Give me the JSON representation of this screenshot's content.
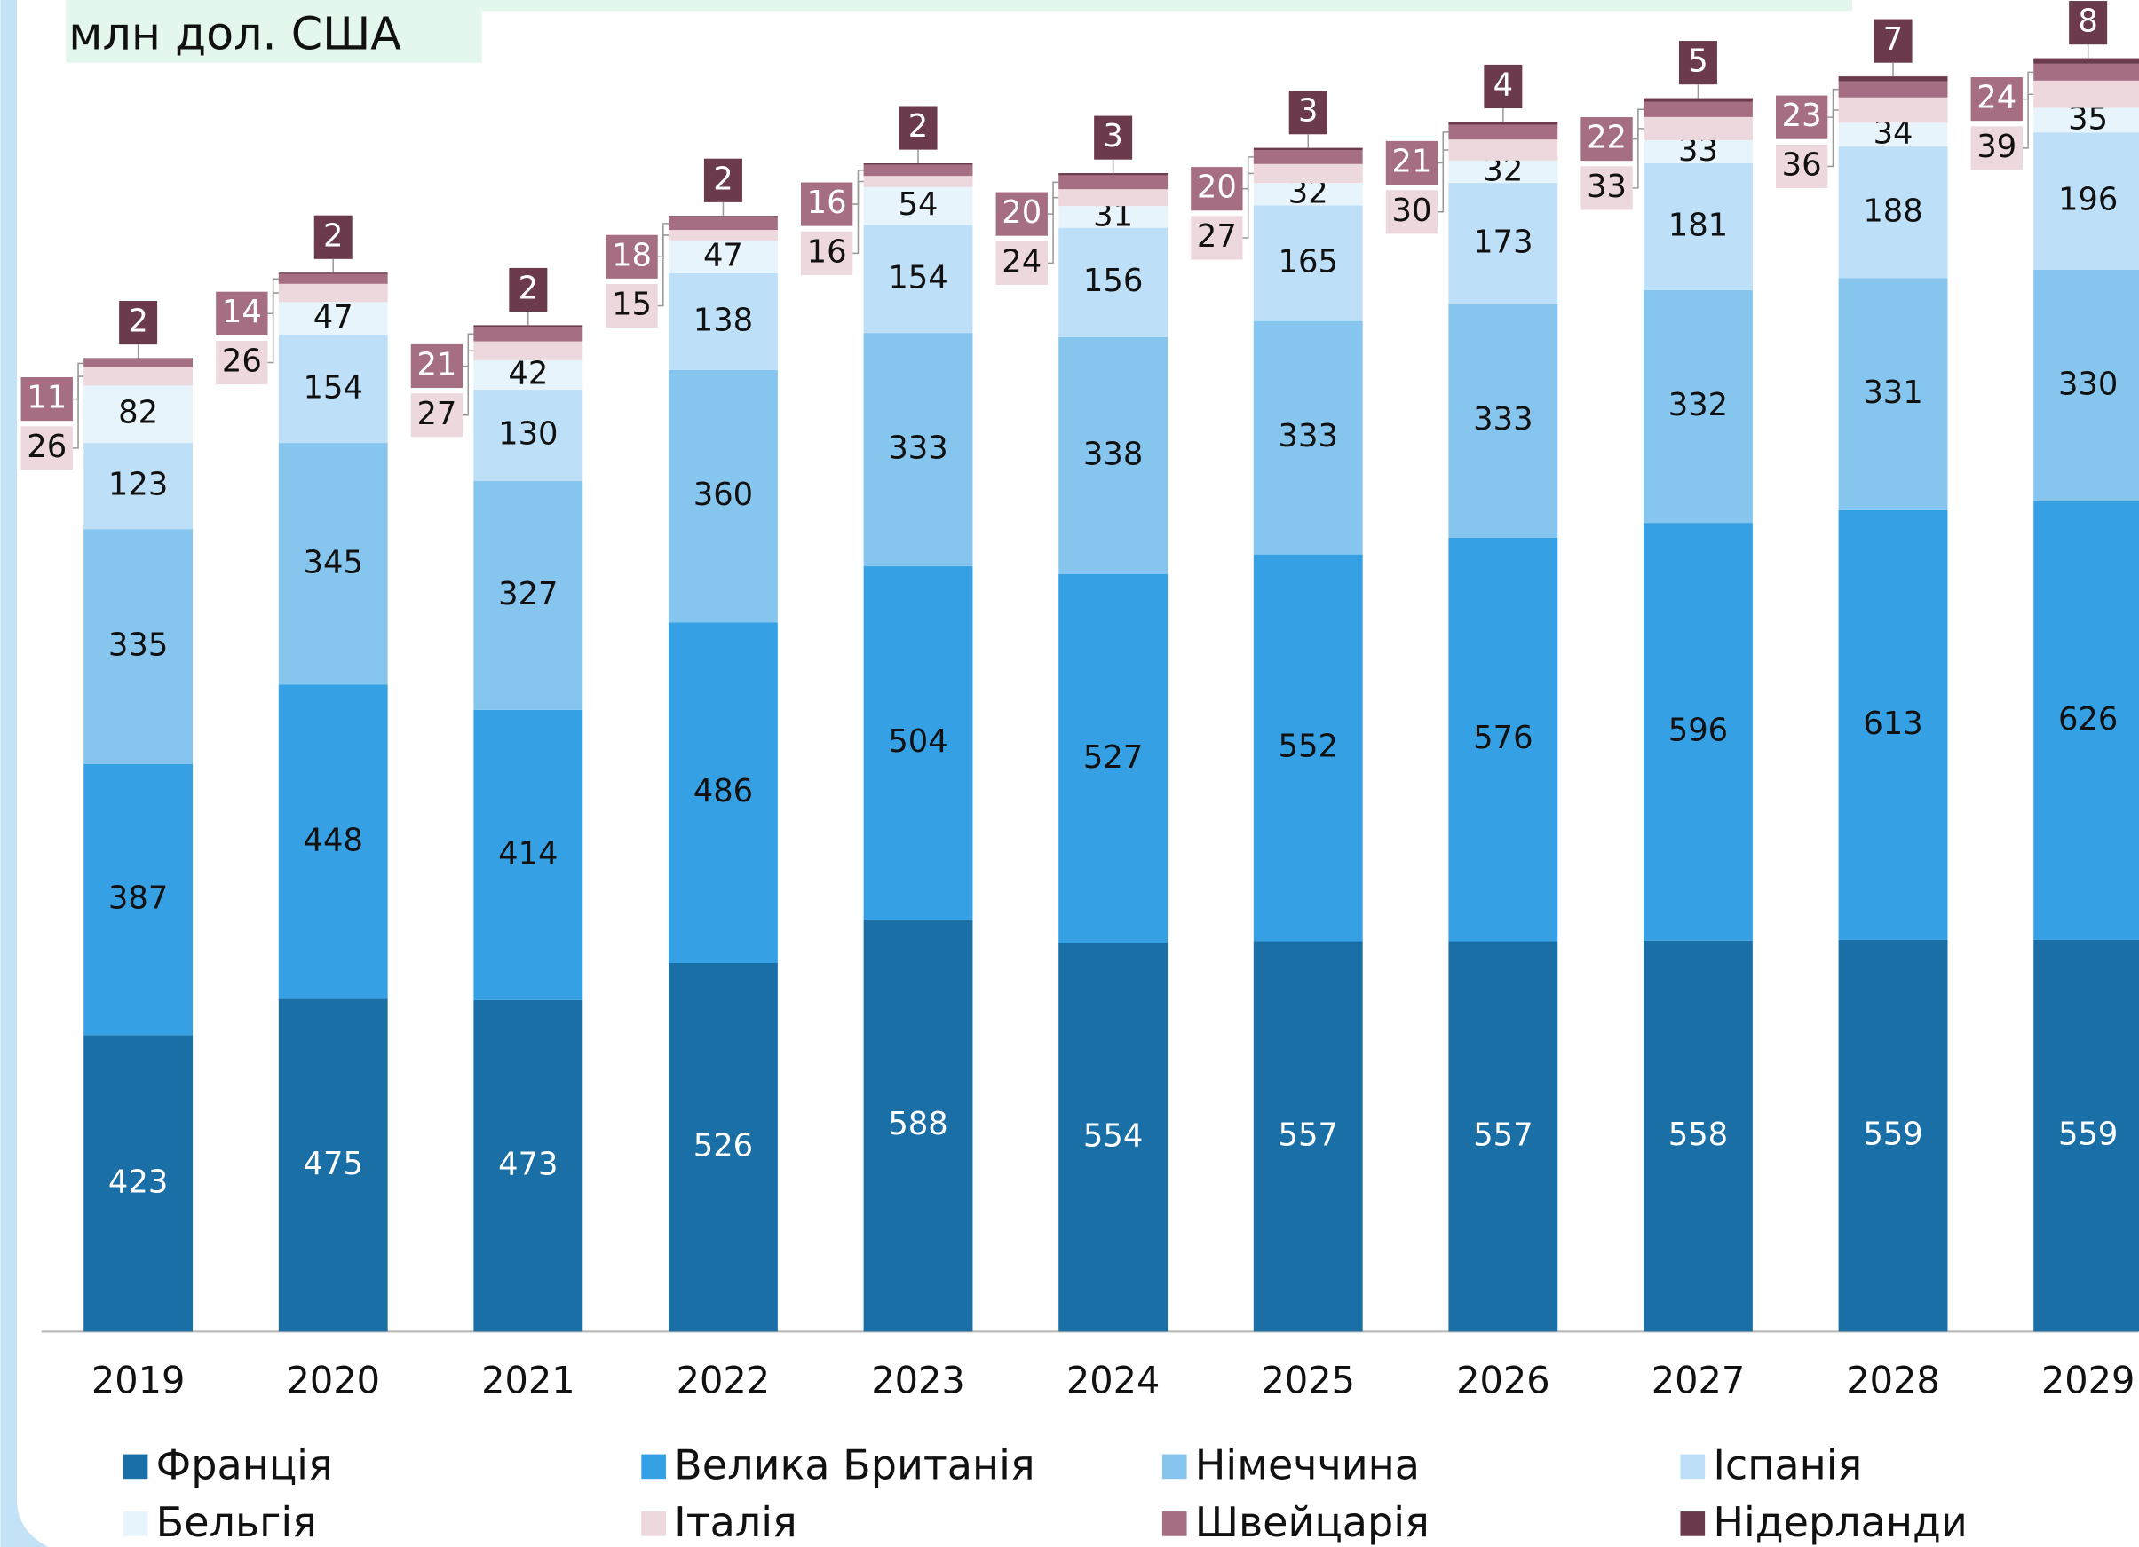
{
  "chart_data": {
    "type": "stacked-bar",
    "title": "млн дол. США",
    "categories": [
      "2019",
      "2020",
      "2021",
      "2022",
      "2023",
      "2024",
      "2025",
      "2026",
      "2027",
      "2028",
      "2029"
    ],
    "series": [
      {
        "name": "Франція",
        "color": "#1a6fa6",
        "values": [
          423,
          475,
          473,
          526,
          588,
          554,
          557,
          557,
          558,
          559,
          559
        ]
      },
      {
        "name": "Велика Британія",
        "color": "#35a1e4",
        "values": [
          387,
          448,
          414,
          486,
          504,
          527,
          552,
          576,
          596,
          613,
          626
        ]
      },
      {
        "name": "Німеччина",
        "color": "#86c5ee",
        "values": [
          335,
          345,
          327,
          360,
          333,
          338,
          333,
          333,
          332,
          331,
          330
        ]
      },
      {
        "name": "Іспанія",
        "color": "#bddff7",
        "values": [
          123,
          154,
          130,
          138,
          154,
          156,
          165,
          173,
          181,
          188,
          196
        ]
      },
      {
        "name": "Бельгія",
        "color": "#e8f4fc",
        "values": [
          82,
          47,
          42,
          47,
          54,
          31,
          32,
          32,
          33,
          34,
          35
        ]
      },
      {
        "name": "Італія",
        "color": "#ecd8dd",
        "values": [
          26,
          26,
          27,
          15,
          16,
          24,
          27,
          30,
          33,
          36,
          39
        ]
      },
      {
        "name": "Швейцарія",
        "color": "#a56e83",
        "values": [
          11,
          14,
          21,
          18,
          16,
          20,
          20,
          21,
          22,
          23,
          24
        ]
      },
      {
        "name": "Нідерланди",
        "color": "#6b3a4d",
        "values": [
          2,
          2,
          2,
          2,
          2,
          3,
          3,
          4,
          5,
          7,
          8
        ]
      }
    ],
    "ylim": [
      0,
      1900
    ]
  }
}
